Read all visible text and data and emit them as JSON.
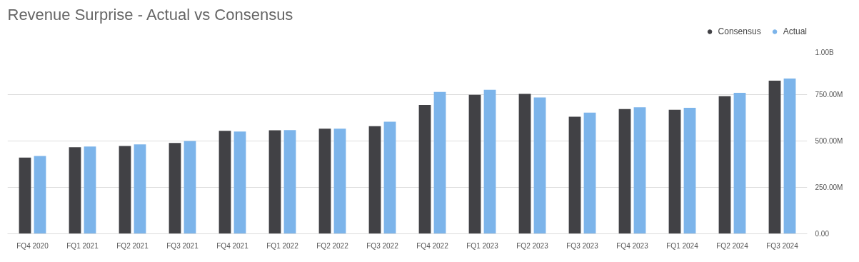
{
  "chart_data": {
    "type": "bar",
    "title": "Revenue Surprise - Actual vs Consensus",
    "categories": [
      "FQ4 2020",
      "FQ1 2021",
      "FQ2 2021",
      "FQ3 2021",
      "FQ4 2021",
      "FQ1 2022",
      "FQ2 2022",
      "FQ3 2022",
      "FQ4 2022",
      "FQ1 2023",
      "FQ2 2023",
      "FQ3 2023",
      "FQ4 2023",
      "FQ1 2024",
      "FQ2 2024",
      "FQ3 2024"
    ],
    "series": [
      {
        "name": "Consensus",
        "color": "#414145",
        "values": [
          411000000,
          466000000,
          473000000,
          489000000,
          555000000,
          558000000,
          566000000,
          580000000,
          694000000,
          749000000,
          754000000,
          631000000,
          672000000,
          668000000,
          741000000,
          825000000
        ]
      },
      {
        "name": "Actual",
        "color": "#7cb4ea",
        "values": [
          419000000,
          470000000,
          482000000,
          500000000,
          551000000,
          559000000,
          566000000,
          604000000,
          764000000,
          776000000,
          735000000,
          653000000,
          682000000,
          679000000,
          760000000,
          837000000
        ]
      }
    ],
    "ylim": [
      0,
      1000000000
    ],
    "yticks": [
      {
        "value": 0,
        "label": "0.00"
      },
      {
        "value": 250000000,
        "label": "250.00M"
      },
      {
        "value": 500000000,
        "label": "500.00M"
      },
      {
        "value": 750000000,
        "label": "750.00M"
      },
      {
        "value": 1000000000,
        "label": "1.00B"
      }
    ],
    "grid": "y",
    "legend": "top right"
  }
}
